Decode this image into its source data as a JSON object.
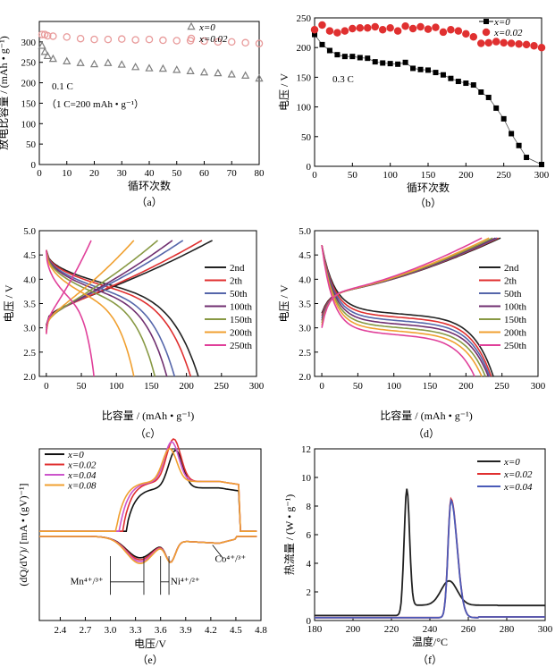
{
  "chart_data": [
    {
      "panel": "a",
      "caption": "（a）",
      "type": "scatter",
      "xlabel": "循环次数",
      "ylabel": "放电比容量 / (mAh • g⁻¹)",
      "xlim": [
        0,
        80
      ],
      "ylim": [
        0,
        350
      ],
      "xticks": [
        "0",
        "10",
        "20",
        "30",
        "40",
        "50",
        "60",
        "70",
        "80"
      ],
      "yticks": [
        "0",
        "50",
        "100",
        "150",
        "200",
        "250",
        "300"
      ],
      "annotations": [
        "0.1 C",
        "（1 C=200 mAh • g⁻¹）"
      ],
      "legend_position": "top-right",
      "series": [
        {
          "name": "x=0",
          "marker": "triangle",
          "color": "#7f7f7f",
          "x": [
            1,
            2,
            3,
            5,
            10,
            15,
            20,
            25,
            30,
            35,
            40,
            45,
            50,
            55,
            60,
            65,
            70,
            75,
            80
          ],
          "y": [
            290,
            275,
            265,
            258,
            252,
            248,
            245,
            248,
            244,
            238,
            235,
            234,
            231,
            228,
            225,
            223,
            220,
            217,
            210
          ]
        },
        {
          "name": "x=0.02",
          "marker": "circle",
          "color": "#e89a9a",
          "x": [
            1,
            2,
            3,
            5,
            10,
            15,
            20,
            25,
            30,
            35,
            40,
            45,
            50,
            55,
            60,
            65,
            70,
            75,
            80
          ],
          "y": [
            318,
            318,
            315,
            314,
            312,
            308,
            306,
            306,
            307,
            305,
            306,
            304,
            303,
            303,
            302,
            300,
            300,
            298,
            296
          ]
        }
      ]
    },
    {
      "panel": "b",
      "caption": "（b）",
      "type": "line",
      "xlabel": "循环次数",
      "ylabel": "电压 / V",
      "xlim": [
        0,
        300
      ],
      "ylim": [
        0,
        250
      ],
      "xticks": [
        "0",
        "50",
        "100",
        "150",
        "200",
        "250",
        "300"
      ],
      "yticks": [
        "0",
        "50",
        "100",
        "150",
        "200",
        "250"
      ],
      "annotations": [
        "0.3 C"
      ],
      "legend_position": "top-right",
      "series": [
        {
          "name": "x=0",
          "marker": "square",
          "color": "#000000",
          "x": [
            0,
            10,
            20,
            30,
            40,
            50,
            60,
            70,
            80,
            90,
            100,
            110,
            120,
            130,
            140,
            150,
            160,
            170,
            180,
            190,
            200,
            210,
            220,
            230,
            240,
            250,
            260,
            270,
            280,
            300
          ],
          "y": [
            222,
            205,
            195,
            188,
            185,
            185,
            183,
            182,
            176,
            174,
            173,
            172,
            175,
            165,
            163,
            162,
            158,
            154,
            148,
            143,
            140,
            137,
            125,
            116,
            98,
            80,
            55,
            35,
            15,
            3
          ]
        },
        {
          "name": "x=0.02",
          "marker": "circle",
          "color": "#e03030",
          "x": [
            0,
            10,
            20,
            30,
            40,
            50,
            60,
            70,
            80,
            90,
            100,
            110,
            120,
            130,
            140,
            150,
            160,
            170,
            180,
            190,
            200,
            210,
            220,
            230,
            240,
            250,
            260,
            270,
            280,
            290,
            300
          ],
          "y": [
            230,
            238,
            228,
            225,
            228,
            232,
            233,
            233,
            235,
            230,
            233,
            228,
            236,
            232,
            235,
            231,
            234,
            226,
            230,
            228,
            223,
            218,
            207,
            208,
            210,
            208,
            207,
            206,
            205,
            203,
            200
          ]
        }
      ]
    },
    {
      "panel": "c",
      "caption": "（c）",
      "type": "line",
      "xlabel": "比容量 / (mAh • g⁻¹)",
      "ylabel": "电压 / V",
      "xlim": [
        0,
        300
      ],
      "ylim": [
        2.0,
        5.0
      ],
      "xticks": [
        "0",
        "50",
        "100",
        "150",
        "200",
        "250",
        "300"
      ],
      "yticks": [
        "2.0",
        "2.5",
        "3.0",
        "3.5",
        "4.0",
        "4.5",
        "5.0"
      ],
      "legend_position": "right",
      "series": [
        {
          "name": "2nd",
          "color": "#222222",
          "capacity": 217
        },
        {
          "name": "2th",
          "color": "#e03030",
          "capacity": 206
        },
        {
          "name": "50th",
          "color": "#5566aa",
          "capacity": 183
        },
        {
          "name": "100th",
          "color": "#702f70",
          "capacity": 172
        },
        {
          "name": "150th",
          "color": "#889944",
          "capacity": 155
        },
        {
          "name": "200th",
          "color": "#f0a030",
          "capacity": 125
        },
        {
          "name": "250th",
          "color": "#e0409a",
          "capacity": 68
        }
      ]
    },
    {
      "panel": "d",
      "caption": "（d）",
      "type": "line",
      "xlabel": "比容量 / (mAh • g⁻¹)",
      "ylabel": "电压 / V",
      "xlim": [
        0,
        300
      ],
      "ylim": [
        2.0,
        5.0
      ],
      "xticks": [
        "0",
        "50",
        "100",
        "150",
        "200",
        "250",
        "300"
      ],
      "yticks": [
        "2.0",
        "2.5",
        "3.0",
        "3.5",
        "4.0",
        "4.5",
        "5.0"
      ],
      "legend_position": "right",
      "series": [
        {
          "name": "2nd",
          "color": "#222222",
          "capacity": 238
        },
        {
          "name": "2th",
          "color": "#e03030",
          "capacity": 235
        },
        {
          "name": "50th",
          "color": "#5566aa",
          "capacity": 233
        },
        {
          "name": "100th",
          "color": "#702f70",
          "capacity": 231
        },
        {
          "name": "150th",
          "color": "#889944",
          "capacity": 227
        },
        {
          "name": "200th",
          "color": "#f0a030",
          "capacity": 222
        },
        {
          "name": "250th",
          "color": "#e0409a",
          "capacity": 212
        }
      ]
    },
    {
      "panel": "e",
      "caption": "（e）",
      "type": "line",
      "xlabel": "电压/V",
      "ylabel": "(dQ/dV)/ [mA • (gV)⁻¹]",
      "xlim": [
        2.1,
        4.8
      ],
      "xticks": [
        "2.4",
        "2.7",
        "3.0",
        "3.3",
        "3.6",
        "3.9",
        "4.2",
        "4.5",
        "4.8"
      ],
      "annotations": [
        "Mn⁴⁺/³⁺",
        "Ni⁴⁺/²⁺",
        "Co⁴⁺/³⁺"
      ],
      "legend_position": "top-left",
      "series": [
        {
          "name": "x=0",
          "color": "#111111"
        },
        {
          "name": "x=0.02",
          "color": "#e03030"
        },
        {
          "name": "x=0.04",
          "color": "#cc55cc"
        },
        {
          "name": "x=0.08",
          "color": "#f0a030"
        }
      ]
    },
    {
      "panel": "f",
      "caption": "（f）",
      "type": "line",
      "xlabel": "温度/°C",
      "ylabel": "热流量 / (W • g⁻¹)",
      "xlim": [
        180,
        300
      ],
      "ylim": [
        0,
        12
      ],
      "xticks": [
        "180",
        "200",
        "220",
        "240",
        "260",
        "280",
        "300"
      ],
      "yticks": [
        "0",
        "2",
        "4",
        "6",
        "8",
        "10",
        "12"
      ],
      "legend_position": "top-right",
      "series": [
        {
          "name": "x=0",
          "color": "#222222",
          "peak_x": 228,
          "peak_y": 8.5
        },
        {
          "name": "x=0.02",
          "color": "#e03030",
          "peak_x": 251,
          "peak_y": 8.3
        },
        {
          "name": "x=0.04",
          "color": "#4a5ab8",
          "peak_x": 251,
          "peak_y": 8.2
        }
      ]
    }
  ]
}
